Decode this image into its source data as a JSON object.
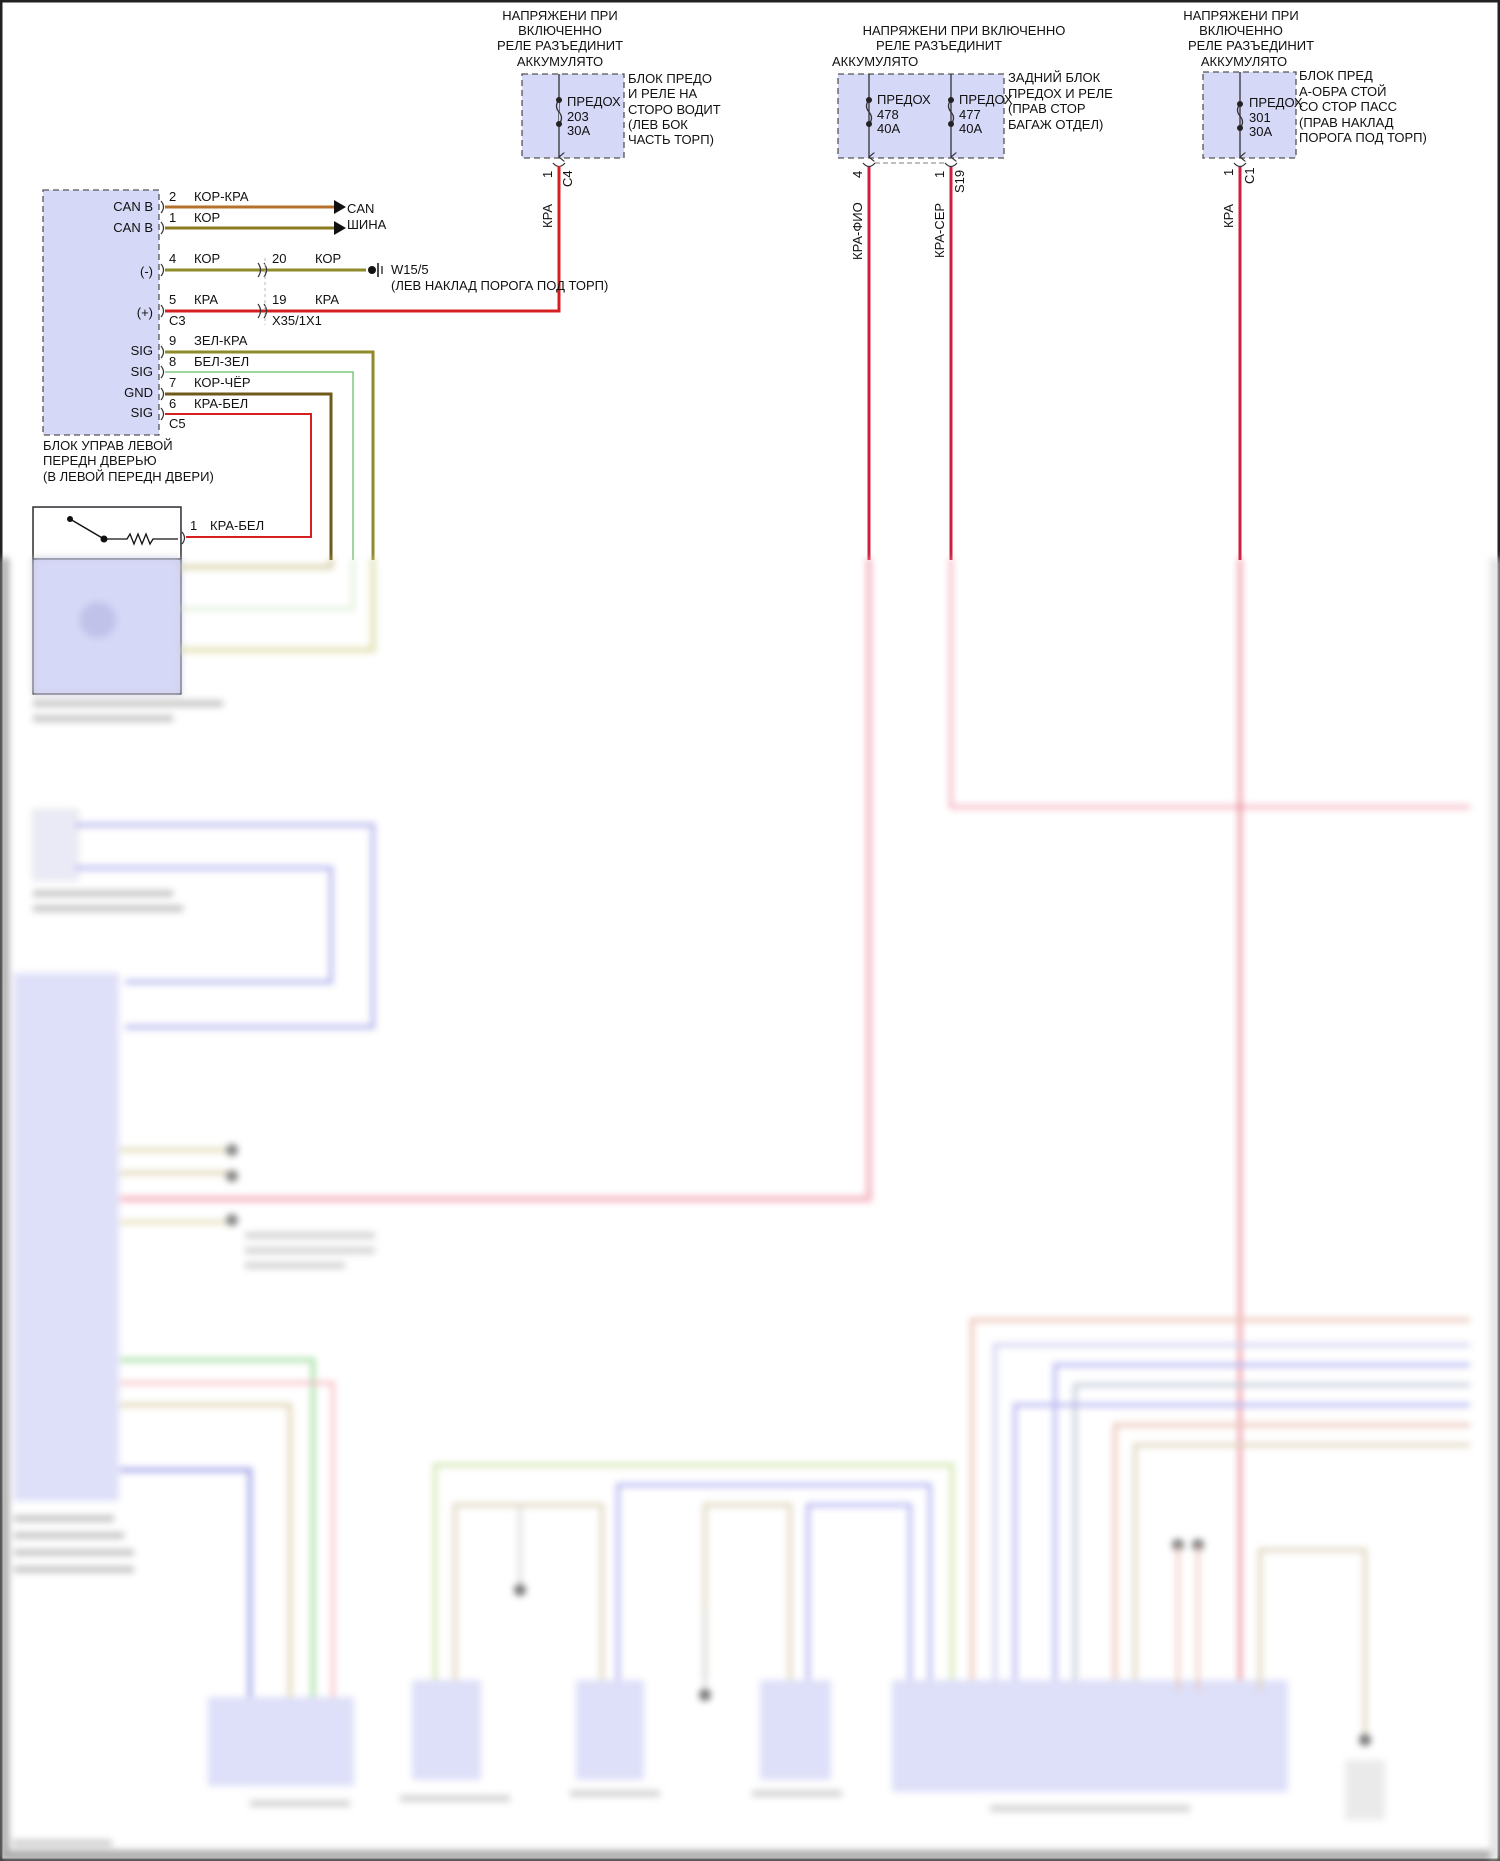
{
  "fuse_blocks": [
    {
      "header": [
        "НАПРЯЖЕНИ ПРИ",
        "ВКЛЮЧЕННО",
        "РЕЛЕ РАЗЪЕДИНИТ",
        "АККУМУЛЯТО"
      ],
      "location": [
        "БЛОК ПРЕДО",
        "И РЕЛЕ НА",
        "СТОРО ВОДИТ",
        "(ЛЕВ БОК",
        "ЧАСТЬ ТОРП)"
      ],
      "fuses": [
        {
          "label": "ПРЕДОХ",
          "number": "203",
          "rating": "30A"
        }
      ],
      "pin": "1",
      "connector": "C4",
      "wire_color": "КРА"
    },
    {
      "header": [
        "НАПРЯЖЕНИ ПРИ ВКЛЮЧЕННО",
        "РЕЛЕ РАЗЪЕДИНИТ",
        "АККУМУЛЯТО"
      ],
      "location": [
        "ЗАДНИЙ БЛОК",
        "ПРЕДОХ И РЕЛЕ",
        "(ПРАВ СТОР",
        "БАГАЖ ОТДЕЛ)"
      ],
      "fuses": [
        {
          "label": "ПРЕДОХ",
          "number": "478",
          "rating": "40A",
          "pin": "4",
          "wire_color": "КРА-ФИО"
        },
        {
          "label": "ПРЕДОХ",
          "number": "477",
          "rating": "40A",
          "pin": "1",
          "wire_color": "КРА-СЕР"
        }
      ],
      "connector": "S19"
    },
    {
      "header": [
        "НАПРЯЖЕНИ ПРИ",
        "ВКЛЮЧЕННО",
        "РЕЛЕ РАЗЪЕДИНИТ",
        "АККУМУЛЯТО"
      ],
      "location": [
        "БЛОК ПРЕД",
        "А-ОБРА СТОЙ",
        "СО СТОР ПАСС",
        "(ПРАВ НАКЛАД",
        "ПОРОГА ПОД ТОРП)"
      ],
      "fuses": [
        {
          "label": "ПРЕДОХ",
          "number": "301",
          "rating": "30A"
        }
      ],
      "pin": "1",
      "connector": "C1",
      "wire_color": "КРА"
    }
  ],
  "door_module": {
    "caption": [
      "БЛОК УПРАВ ЛЕВОЙ",
      "ПЕРЕДН ДВЕРЬЮ",
      "(В ЛЕВОЙ ПЕРЕДН ДВЕРИ)"
    ],
    "pins": [
      {
        "name": "CAN B",
        "pin": "2",
        "wire": "КОР-КРА"
      },
      {
        "name": "CAN B",
        "pin": "1",
        "wire": "КОР"
      },
      {
        "name": "(-)",
        "pin": "4",
        "wire": "КОР"
      },
      {
        "name": "(+)",
        "pin": "5",
        "wire": "КРА"
      },
      {
        "name": "SIG",
        "pin": "9",
        "wire": "ЗЕЛ-КРА"
      },
      {
        "name": "SIG",
        "pin": "8",
        "wire": "БЕЛ-ЗЕЛ"
      },
      {
        "name": "GND",
        "pin": "7",
        "wire": "КОР-ЧЁР"
      },
      {
        "name": "SIG",
        "pin": "6",
        "wire": "КРА-БЕЛ"
      }
    ],
    "connector_c3": "C3",
    "connector_c5": "C5"
  },
  "can_bus": [
    "CAN",
    "ШИНА"
  ],
  "inline_connector": {
    "name": "X35/1X1",
    "pin_ground": "20",
    "wire_ground": "КОР",
    "pin_power": "19",
    "wire_power": "КРА"
  },
  "ground": {
    "name": "W15/5",
    "location": "(ЛЕВ НАКЛАД ПОРОГА ПОД ТОРП)"
  },
  "switch": {
    "pin": "1",
    "wire": "КРА-БЕЛ"
  },
  "colors": {
    "red": "#d42020",
    "crimson": "#cc1f3f",
    "brown": "#8a5a1a",
    "olive": "#8f8a2a",
    "light_green": "#7fc67f",
    "module_fill": "#d6d8f7",
    "lavender_wire": "#9a9ae6"
  }
}
